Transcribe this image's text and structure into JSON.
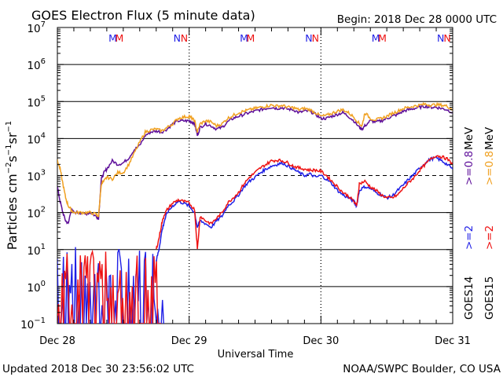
{
  "header": {
    "title": "GOES Electron Flux (5 minute data)",
    "begin": "Begin: 2018 Dec 28 0000 UTC"
  },
  "footer": {
    "updated": "Updated 2018 Dec 30 23:56:02 UTC",
    "credit": "NOAA/SWPC Boulder, CO USA"
  },
  "colors": {
    "goes14_high": "#1f1fe6",
    "goes15_high": "#ee1111",
    "goes14_low": "#5e0f9a",
    "goes15_low": "#f0a020",
    "axis": "#000000"
  },
  "chart_data": {
    "type": "line",
    "title": "GOES Electron Flux (5 minute data)",
    "xlabel": "Universal Time",
    "ylabel": "Particles cm⁻²s⁻¹sr⁻¹",
    "ylabel_parts": [
      "Particles cm",
      "−2",
      "s",
      "−1",
      "sr",
      "−1"
    ],
    "y_scale": "log",
    "ylim": [
      0.1,
      10000000
    ],
    "y_ticks": [
      {
        "base": "10",
        "exp": "−1"
      },
      {
        "base": "10",
        "exp": "0"
      },
      {
        "base": "10",
        "exp": "1"
      },
      {
        "base": "10",
        "exp": "2"
      },
      {
        "base": "10",
        "exp": "3"
      },
      {
        "base": "10",
        "exp": "4"
      },
      {
        "base": "10",
        "exp": "5"
      },
      {
        "base": "10",
        "exp": "6"
      },
      {
        "base": "10",
        "exp": "7"
      }
    ],
    "x_unit": "hours since 2018 Dec 28 00:00 UTC",
    "xlim": [
      0,
      72
    ],
    "x_ticks": [
      {
        "label": "Dec 28",
        "hour": 0
      },
      {
        "label": "Dec 29",
        "hour": 24
      },
      {
        "label": "Dec 30",
        "hour": 48
      },
      {
        "label": "Dec 31",
        "hour": 72
      }
    ],
    "threshold_line": 1000,
    "grid": "horizontal at 10^0, 10^1, 10^2, 10^4, 10^5, 10^6; dashed at 10^3",
    "markers": [
      {
        "label": "M",
        "hour": 10.1,
        "color": "#1f1fe6"
      },
      {
        "label": "M",
        "hour": 11.3,
        "color": "#ee1111"
      },
      {
        "label": "N",
        "hour": 21.8,
        "color": "#1f1fe6"
      },
      {
        "label": "N",
        "hour": 23.1,
        "color": "#ee1111"
      },
      {
        "label": "M",
        "hour": 34.0,
        "color": "#1f1fe6"
      },
      {
        "label": "M",
        "hour": 35.2,
        "color": "#ee1111"
      },
      {
        "label": "N",
        "hour": 45.8,
        "color": "#1f1fe6"
      },
      {
        "label": "N",
        "hour": 47.0,
        "color": "#ee1111"
      },
      {
        "label": "M",
        "hour": 58.0,
        "color": "#1f1fe6"
      },
      {
        "label": "M",
        "hour": 59.2,
        "color": "#ee1111"
      },
      {
        "label": "N",
        "hour": 69.8,
        "color": "#1f1fe6"
      },
      {
        "label": "N",
        "hour": 71.0,
        "color": "#ee1111"
      }
    ],
    "right_legend": {
      "low_energy": [
        {
          "text": ">=0.8",
          "color": "#5e0f9a"
        },
        {
          "text": ">=0.8",
          "color": "#f0a020"
        }
      ],
      "low_unit": "MeV",
      "high_energy": [
        {
          "text": ">=2",
          "color": "#1f1fe6"
        },
        {
          "text": ">=2",
          "color": "#ee1111"
        }
      ],
      "satellites": [
        "GOES14",
        "GOES15"
      ]
    },
    "series": [
      {
        "name": "GOES14 >=0.8 MeV",
        "color": "#5e0f9a",
        "x": [
          0,
          0.5,
          1,
          1.5,
          2,
          2.5,
          3,
          4,
          5,
          6,
          7,
          7.5,
          8,
          8.5,
          9,
          10,
          11,
          12,
          13,
          14,
          15,
          16,
          17,
          18,
          19,
          20,
          21,
          22,
          23,
          24,
          24.5,
          25,
          25.5,
          26,
          27,
          28,
          29,
          30,
          31,
          32,
          33,
          34,
          35,
          36,
          37,
          38,
          39,
          40,
          41,
          42,
          43,
          44,
          45,
          46,
          47,
          48,
          49,
          50,
          51,
          52,
          53,
          54,
          55,
          55.5,
          56,
          57,
          58,
          59,
          60,
          61,
          62,
          63,
          64,
          65,
          66,
          67,
          68,
          69,
          70,
          71,
          72
        ],
        "y": [
          500,
          200,
          100,
          60,
          50,
          120,
          100,
          100,
          90,
          100,
          80,
          70,
          800,
          1200,
          1500,
          2500,
          2000,
          2200,
          3000,
          5000,
          6500,
          12000,
          15000,
          16000,
          15000,
          18000,
          25000,
          30000,
          30000,
          30000,
          28000,
          25000,
          12000,
          20000,
          25000,
          22000,
          18000,
          20000,
          28000,
          35000,
          40000,
          45000,
          50000,
          55000,
          60000,
          65000,
          70000,
          65000,
          68000,
          62000,
          60000,
          50000,
          55000,
          55000,
          45000,
          35000,
          35000,
          40000,
          45000,
          50000,
          40000,
          30000,
          20000,
          18000,
          22000,
          30000,
          28000,
          30000,
          35000,
          40000,
          45000,
          55000,
          60000,
          65000,
          70000,
          75000,
          70000,
          70000,
          65000,
          60000,
          50000
        ]
      },
      {
        "name": "GOES15 >=0.8 MeV",
        "color": "#f0a020",
        "x": [
          0,
          0.5,
          1,
          1.5,
          2,
          2.5,
          3,
          4,
          5,
          6,
          7,
          7.5,
          8,
          8.5,
          9,
          10,
          11,
          12,
          13,
          14,
          15,
          16,
          17,
          18,
          19,
          20,
          21,
          22,
          23,
          24,
          24.5,
          25,
          25.5,
          26,
          27,
          28,
          29,
          30,
          31,
          32,
          33,
          34,
          35,
          36,
          37,
          38,
          39,
          40,
          41,
          42,
          43,
          44,
          45,
          46,
          47,
          48,
          49,
          50,
          51,
          52,
          53,
          54,
          55,
          55.5,
          56,
          57,
          58,
          59,
          60,
          61,
          62,
          63,
          64,
          65,
          66,
          67,
          68,
          69,
          70,
          71,
          72
        ],
        "y": [
          2500,
          1500,
          600,
          250,
          150,
          120,
          100,
          100,
          100,
          100,
          90,
          80,
          600,
          700,
          900,
          800,
          1200,
          1200,
          2000,
          4000,
          8000,
          15000,
          17000,
          18000,
          16000,
          20000,
          25000,
          35000,
          38000,
          40000,
          35000,
          30000,
          15000,
          25000,
          30000,
          28000,
          22000,
          25000,
          35000,
          42000,
          50000,
          55000,
          60000,
          65000,
          70000,
          75000,
          80000,
          75000,
          78000,
          70000,
          68000,
          60000,
          65000,
          60000,
          50000,
          40000,
          42000,
          48000,
          55000,
          60000,
          50000,
          38000,
          25000,
          22000,
          50000,
          35000,
          32000,
          35000,
          40000,
          48000,
          55000,
          65000,
          70000,
          75000,
          80000,
          85000,
          80000,
          82000,
          80000,
          75000,
          60000
        ]
      },
      {
        "name": "GOES14 >=2 MeV",
        "color": "#1f1fe6",
        "x": [
          18,
          18.5,
          19,
          19.5,
          20,
          21,
          22,
          23,
          24,
          25,
          25.5,
          26,
          27,
          28,
          29,
          30,
          31,
          32,
          33,
          34,
          35,
          36,
          37,
          38,
          39,
          40,
          41,
          42,
          43,
          44,
          45,
          46,
          47,
          48,
          49,
          50,
          51,
          52,
          53,
          54,
          54.5,
          55,
          56,
          57,
          58,
          59,
          60,
          61,
          62,
          63,
          64,
          65,
          66,
          67,
          68,
          69,
          70,
          71,
          72
        ],
        "y": [
          5,
          10,
          30,
          60,
          100,
          150,
          200,
          180,
          150,
          100,
          40,
          60,
          50,
          40,
          60,
          80,
          150,
          200,
          300,
          500,
          700,
          900,
          1200,
          1500,
          1800,
          2000,
          2200,
          1800,
          1500,
          1200,
          1000,
          1100,
          900,
          1000,
          800,
          600,
          400,
          300,
          250,
          200,
          150,
          400,
          500,
          450,
          350,
          300,
          250,
          280,
          400,
          550,
          800,
          1100,
          1600,
          2200,
          2800,
          3000,
          2500,
          2000,
          1500
        ]
      },
      {
        "name": "GOES15 >=2 MeV",
        "color": "#ee1111",
        "x": [
          18,
          18.5,
          19,
          19.5,
          20,
          21,
          22,
          23,
          24,
          25,
          25.5,
          26,
          27,
          28,
          29,
          30,
          31,
          32,
          33,
          34,
          35,
          36,
          37,
          38,
          39,
          40,
          41,
          42,
          43,
          44,
          45,
          46,
          47,
          48,
          49,
          50,
          51,
          52,
          53,
          54,
          54.5,
          55,
          56,
          57,
          58,
          59,
          60,
          61,
          62,
          63,
          64,
          65,
          66,
          67,
          68,
          69,
          70,
          71,
          72
        ],
        "y": [
          10,
          20,
          50,
          90,
          120,
          180,
          220,
          200,
          180,
          120,
          10,
          80,
          60,
          50,
          70,
          100,
          180,
          250,
          350,
          600,
          900,
          1200,
          1600,
          2000,
          2500,
          2600,
          2500,
          2200,
          1800,
          1600,
          1500,
          1400,
          1400,
          1300,
          1000,
          700,
          500,
          350,
          280,
          200,
          150,
          600,
          700,
          500,
          400,
          300,
          250,
          250,
          300,
          450,
          650,
          900,
          1400,
          2000,
          2800,
          3500,
          3200,
          2800,
          2000
        ]
      }
    ],
    "noise_series": [
      {
        "name": "GOES14 >=2 MeV early noise",
        "color": "#1f1fe6",
        "x_range": [
          0,
          19.5
        ],
        "y_range": [
          0.1,
          30
        ],
        "note": "dense spiky trace near background level"
      },
      {
        "name": "GOES15 >=2 MeV early noise",
        "color": "#ee1111",
        "x_range": [
          0,
          19
        ],
        "y_range": [
          0.1,
          20
        ],
        "note": "dense spiky trace near background level"
      }
    ]
  }
}
